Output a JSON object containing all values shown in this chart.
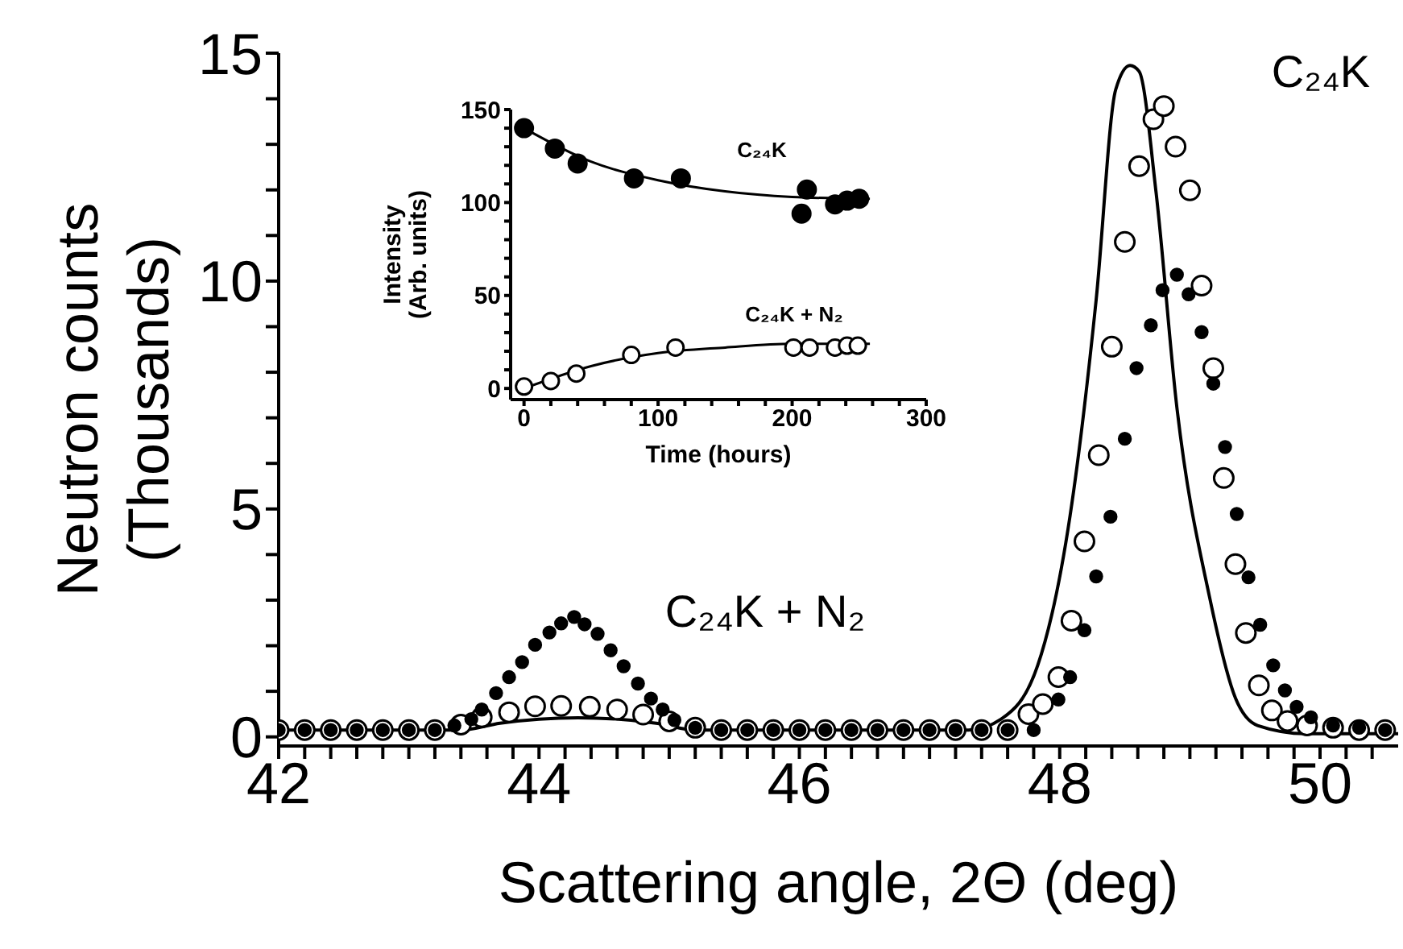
{
  "chart_data": [
    {
      "type": "scatter",
      "xlabel": "Scattering angle, 2Θ (deg)",
      "ylabel": "Neutron counts\n(Thousands)",
      "marker": "circle",
      "xlim": [
        42,
        50.6
      ],
      "ylim": [
        -0.2,
        15
      ],
      "xticks": [
        42,
        {
          "value": 42.2,
          "label": null
        },
        {
          "value": 42.4,
          "label": null
        },
        {
          "value": 42.6,
          "label": null
        },
        {
          "value": 42.8,
          "label": null
        },
        {
          "value": 43,
          "label": null
        },
        {
          "value": 43.2,
          "label": null
        },
        {
          "value": 43.4,
          "label": null
        },
        {
          "value": 43.6,
          "label": null
        },
        {
          "value": 43.8,
          "label": null
        },
        44,
        {
          "value": 44.2,
          "label": null
        },
        {
          "value": 44.4,
          "label": null
        },
        {
          "value": 44.6,
          "label": null
        },
        {
          "value": 44.8,
          "label": null
        },
        {
          "value": 45,
          "label": null
        },
        {
          "value": 45.2,
          "label": null
        },
        {
          "value": 45.4,
          "label": null
        },
        {
          "value": 45.6,
          "label": null
        },
        {
          "value": 45.8,
          "label": null
        },
        46,
        {
          "value": 46.2,
          "label": null
        },
        {
          "value": 46.4,
          "label": null
        },
        {
          "value": 46.6,
          "label": null
        },
        {
          "value": 46.8,
          "label": null
        },
        {
          "value": 47,
          "label": null
        },
        {
          "value": 47.2,
          "label": null
        },
        {
          "value": 47.4,
          "label": null
        },
        {
          "value": 47.6,
          "label": null
        },
        {
          "value": 47.8,
          "label": null
        },
        48,
        {
          "value": 48.2,
          "label": null
        },
        {
          "value": 48.4,
          "label": null
        },
        {
          "value": 48.6,
          "label": null
        },
        {
          "value": 48.8,
          "label": null
        },
        {
          "value": 49,
          "label": null
        },
        {
          "value": 49.2,
          "label": null
        },
        {
          "value": 49.4,
          "label": null
        },
        {
          "value": 49.6,
          "label": null
        },
        {
          "value": 49.8,
          "label": null
        },
        50,
        {
          "value": 50.2,
          "label": null
        },
        {
          "value": 50.4,
          "label": null
        }
      ],
      "yticks": [
        0,
        {
          "value": 1,
          "label": null
        },
        {
          "value": 2,
          "label": null
        },
        {
          "value": 3,
          "label": null
        },
        {
          "value": 4,
          "label": null
        },
        5,
        {
          "value": 6,
          "label": null
        },
        {
          "value": 7,
          "label": null
        },
        {
          "value": 8,
          "label": null
        },
        {
          "value": 9,
          "label": null
        },
        10,
        {
          "value": 11,
          "label": null
        },
        {
          "value": 12,
          "label": null
        },
        {
          "value": 13,
          "label": null
        },
        {
          "value": 14,
          "label": null
        },
        15
      ],
      "series": [
        {
          "type": "line",
          "marker": "none",
          "color": "#000000",
          "x": [
            42,
            43.4,
            43.7,
            44.3,
            44.9,
            45.2,
            47.3,
            47.55,
            47.83,
            48.08,
            48.28,
            48.43,
            48.54,
            48.61,
            48.74,
            48.9,
            49.15,
            49.35,
            49.52,
            49.89,
            50.6
          ],
          "values": [
            0.15,
            0.15,
            0.3,
            0.42,
            0.3,
            0.15,
            0.15,
            0.39,
            1.56,
            4.86,
            9.59,
            14.2,
            14.73,
            14.6,
            11.95,
            7.23,
            3.08,
            0.85,
            0.25,
            0.07,
            0.07
          ]
        },
        {
          "color": "#000000",
          "x": [
            42,
            42.2,
            42.4,
            42.6,
            42.8,
            43,
            43.2,
            43.4,
            43.56,
            43.77,
            43.97,
            44.17,
            44.39,
            44.6,
            44.8,
            45,
            45.2,
            45.4,
            45.6,
            45.8,
            46,
            46.2,
            46.4,
            46.6,
            46.8,
            47,
            47.2,
            47.4,
            47.6,
            47.76,
            47.87,
            47.99,
            48.09,
            48.19,
            48.3,
            48.4,
            48.5,
            48.61,
            48.72,
            48.8,
            48.89,
            49,
            49.09,
            49.18,
            49.26,
            49.35,
            49.43,
            49.53,
            49.63,
            49.75,
            49.9,
            50.1,
            50.3,
            50.5
          ],
          "values": [
            0.15,
            0.15,
            0.15,
            0.15,
            0.15,
            0.15,
            0.15,
            0.27,
            0.43,
            0.54,
            0.67,
            0.68,
            0.66,
            0.6,
            0.49,
            0.34,
            0.2,
            0.15,
            0.15,
            0.15,
            0.15,
            0.15,
            0.15,
            0.15,
            0.15,
            0.15,
            0.15,
            0.15,
            0.15,
            0.5,
            0.72,
            1.31,
            2.55,
            4.29,
            6.18,
            8.56,
            10.86,
            12.52,
            13.55,
            13.84,
            12.95,
            11.99,
            9.9,
            8.09,
            5.68,
            3.79,
            2.28,
            1.13,
            0.58,
            0.35,
            0.25,
            0.2,
            0.15,
            0.15
          ]
        },
        {
          "color": "#000000",
          "x": [
            42,
            42.2,
            42.4,
            42.6,
            42.8,
            43,
            43.2,
            43.35,
            43.48,
            43.56,
            43.67,
            43.77,
            43.87,
            43.97,
            44.08,
            44.17,
            44.27,
            44.35,
            44.45,
            44.55,
            44.65,
            44.76,
            44.86,
            44.95,
            45.04,
            45.2,
            45.4,
            45.6,
            45.8,
            46,
            46.2,
            46.4,
            46.6,
            46.8,
            47,
            47.2,
            47.4,
            47.6,
            47.8,
            47.99,
            48.08,
            48.19,
            48.28,
            48.39,
            48.5,
            48.59,
            48.7,
            48.79,
            48.9,
            48.99,
            49.09,
            49.18,
            49.27,
            49.36,
            49.45,
            49.54,
            49.64,
            49.73,
            49.82,
            49.93,
            50.1,
            50.3,
            50.5
          ],
          "values": [
            0.15,
            0.15,
            0.15,
            0.15,
            0.15,
            0.15,
            0.15,
            0.25,
            0.39,
            0.6,
            0.96,
            1.31,
            1.64,
            2.02,
            2.29,
            2.49,
            2.63,
            2.47,
            2.26,
            1.9,
            1.55,
            1.17,
            0.84,
            0.6,
            0.37,
            0.2,
            0.15,
            0.15,
            0.15,
            0.15,
            0.15,
            0.15,
            0.15,
            0.15,
            0.15,
            0.15,
            0.15,
            0.15,
            0.15,
            0.82,
            1.31,
            2.34,
            3.52,
            4.83,
            6.54,
            8.09,
            9.03,
            9.8,
            10.14,
            9.71,
            8.88,
            7.75,
            6.36,
            4.89,
            3.5,
            2.46,
            1.57,
            1.02,
            0.66,
            0.43,
            0.25,
            0.2,
            0.15
          ]
        }
      ],
      "annotations": [
        "C₂₄K",
        "C₂₄K + N₂"
      ]
    },
    {
      "type": "scatter",
      "xlabel": "Time (hours)",
      "ylabel": "Intensity\n(Arb. units)",
      "marker": "circle",
      "xlim": [
        -10,
        300
      ],
      "ylim": [
        -6,
        150
      ],
      "xticks": [
        0,
        {
          "value": 20,
          "label": null
        },
        {
          "value": 40,
          "label": null
        },
        {
          "value": 60,
          "label": null
        },
        {
          "value": 80,
          "label": null
        },
        100,
        {
          "value": 120,
          "label": null
        },
        {
          "value": 140,
          "label": null
        },
        {
          "value": 160,
          "label": null
        },
        {
          "value": 180,
          "label": null
        },
        200,
        {
          "value": 220,
          "label": null
        },
        {
          "value": 240,
          "label": null
        },
        {
          "value": 260,
          "label": null
        },
        {
          "value": 280,
          "label": null
        },
        300
      ],
      "yticks": [
        0,
        {
          "value": 10,
          "label": null
        },
        {
          "value": 20,
          "label": null
        },
        {
          "value": 30,
          "label": null
        },
        {
          "value": 40,
          "label": null
        },
        50,
        {
          "value": 60,
          "label": null
        },
        {
          "value": 70,
          "label": null
        },
        {
          "value": 80,
          "label": null
        },
        {
          "value": 90,
          "label": null
        },
        100,
        {
          "value": 110,
          "label": null
        },
        {
          "value": 120,
          "label": null
        },
        {
          "value": 130,
          "label": null
        },
        {
          "value": 140,
          "label": null
        },
        150
      ],
      "series": [
        {
          "type": "line",
          "marker": "none",
          "color": "#000000",
          "x": [
            0,
            50,
            100,
            150,
            200,
            258
          ],
          "values": [
            140,
            122,
            112,
            106,
            103,
            102
          ]
        },
        {
          "type": "line",
          "marker": "none",
          "color": "#000000",
          "x": [
            0,
            50,
            100,
            150,
            200,
            258
          ],
          "values": [
            0,
            12,
            19,
            22,
            24,
            24
          ]
        },
        {
          "color": "#000000",
          "x": [
            0,
            20,
            39,
            80,
            113,
            201,
            213,
            232,
            241,
            249
          ],
          "values": [
            1,
            4,
            8,
            18,
            22,
            22,
            22,
            22,
            23,
            23
          ]
        },
        {
          "color": "#000000",
          "x": [
            0,
            23,
            40,
            82,
            117,
            207,
            211,
            232,
            241,
            250
          ],
          "values": [
            140,
            129,
            121,
            113,
            113,
            94,
            107,
            99,
            101,
            102
          ]
        }
      ],
      "annotations": [
        "C₂₄K",
        "C₂₄K + N₂"
      ]
    }
  ]
}
